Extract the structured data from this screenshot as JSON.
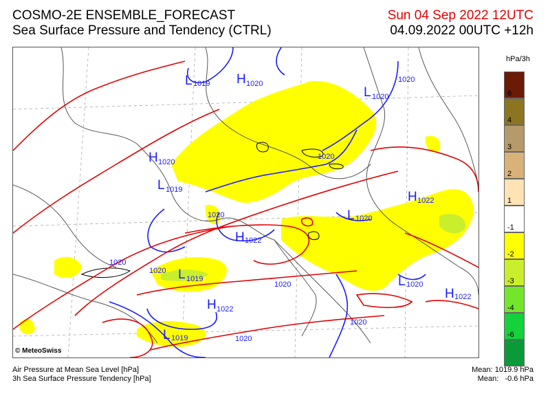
{
  "header": {
    "title_line1": "COSMO-2E ENSEMBLE_FORECAST",
    "title_line2": "Sea Surface Pressure and Tendency (CTRL)",
    "valid_time": "Sun 04 Sep 2022 12UTC",
    "run_time": "04.09.2022 00UTC +12h"
  },
  "legend": {
    "unit": "hPa/3h",
    "items": [
      {
        "label": "6",
        "color": "#6b1a08"
      },
      {
        "label": "4",
        "color": "#8c7520"
      },
      {
        "label": "3",
        "color": "#b59a6a"
      },
      {
        "label": "2",
        "color": "#d9b27a"
      },
      {
        "label": "1",
        "color": "#ffe3b5"
      },
      {
        "label": "-1",
        "color": "#ffffff"
      },
      {
        "label": "-2",
        "color": "#ffff00"
      },
      {
        "label": "-3",
        "color": "#c9ef2c"
      },
      {
        "label": "-4",
        "color": "#73e62b"
      },
      {
        "label": "-6",
        "color": "#15d13b"
      },
      {
        "label": "",
        "color": "#0a9a3a"
      }
    ]
  },
  "map": {
    "pressure_labels": [
      {
        "letter": "H",
        "value": "1020"
      },
      {
        "letter": "L",
        "value": "1019"
      },
      {
        "letter": "L",
        "value": "1020"
      },
      {
        "letter": "H",
        "value": "1020"
      },
      {
        "letter": "L",
        "value": "1019"
      },
      {
        "letter": "L",
        "value": "1020"
      },
      {
        "letter": "H",
        "value": "1022"
      },
      {
        "letter": "H",
        "value": "1022"
      },
      {
        "letter": "L",
        "value": "1019"
      },
      {
        "letter": "H",
        "value": "1022"
      },
      {
        "letter": "L",
        "value": "1020"
      },
      {
        "letter": "H",
        "value": "1022"
      },
      {
        "letter": "L",
        "value": "1019"
      }
    ],
    "contour_values": [
      "1020",
      "1020",
      "1020",
      "1020",
      "1020",
      "1020",
      "1020",
      "1020"
    ]
  },
  "footer": {
    "copyright": "© MeteoSwiss",
    "line1": "Air Pressure at Mean Sea Level [hPa]",
    "line2": "3h Sea Surface Pressure Tendency [hPa]",
    "mean_pressure": "Mean: 1019.9 hPa",
    "mean_tendency": "Mean:   -0.6 hPa"
  }
}
